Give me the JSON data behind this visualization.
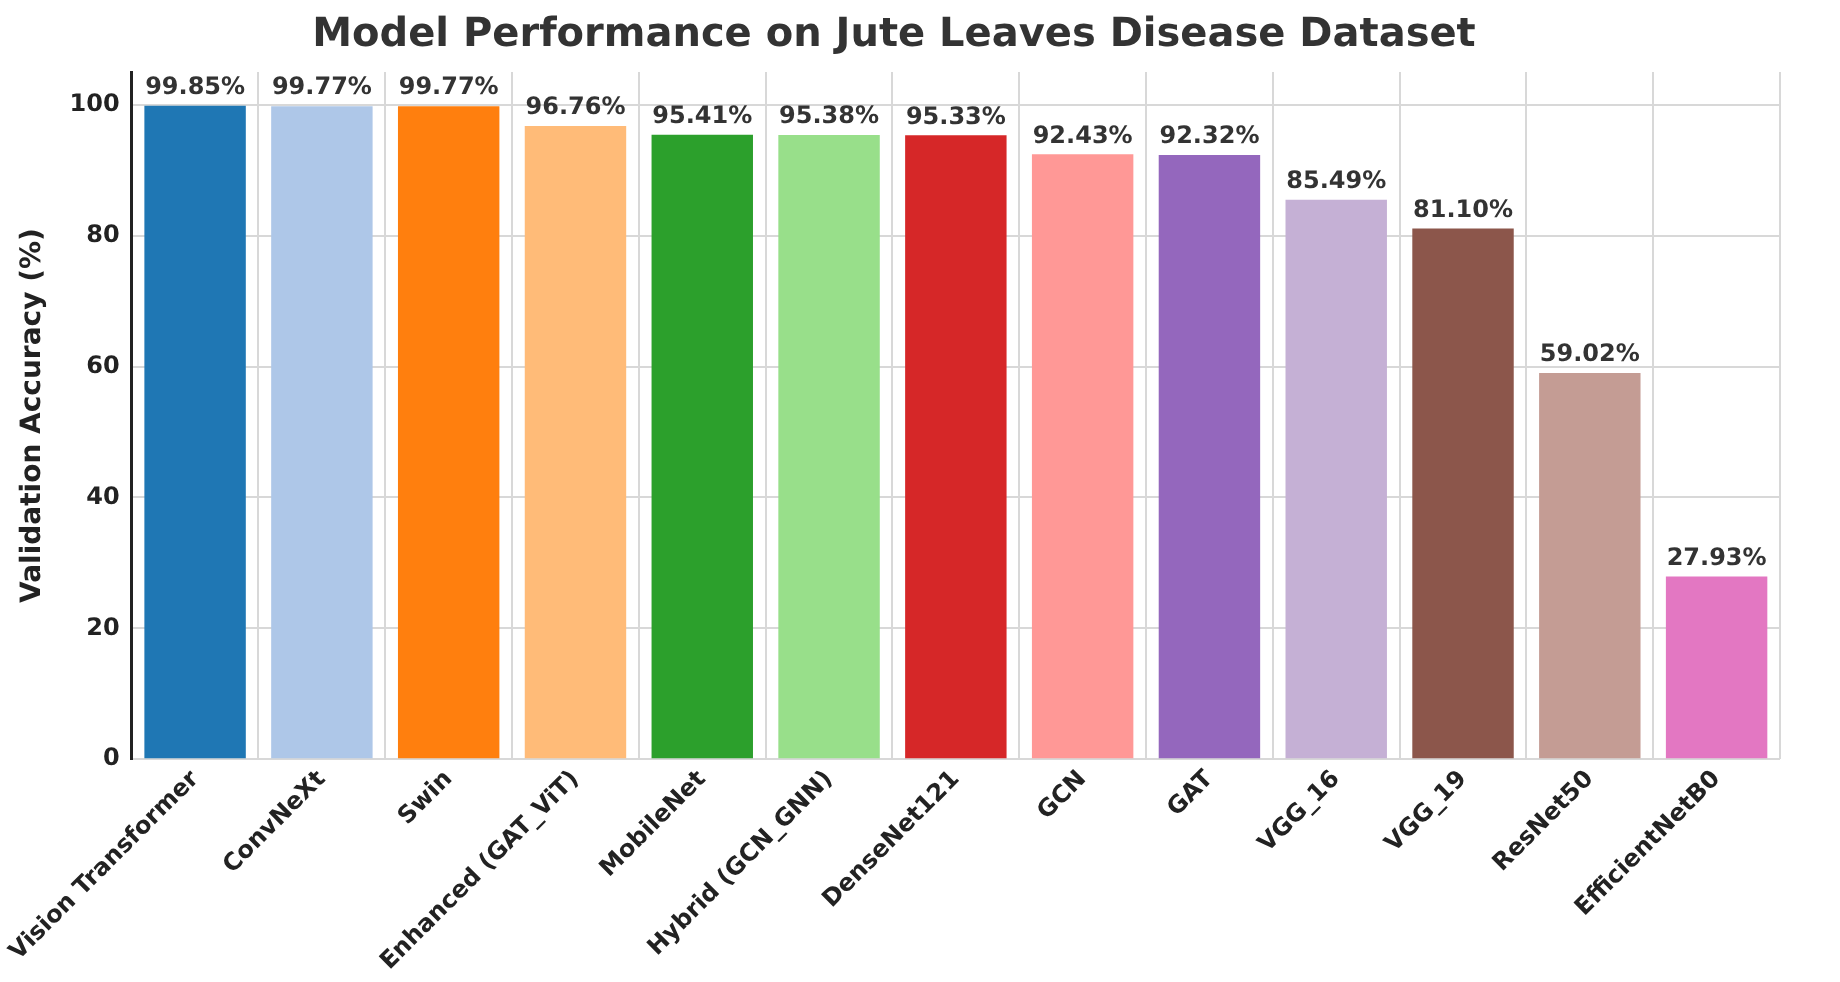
{
  "chart_data": {
    "type": "bar",
    "title": "Model Performance on Jute Leaves Disease Dataset",
    "ylabel": "Validation Accuracy (%)",
    "categories": [
      "Vision Transformer",
      "ConvNeXt",
      "Swin",
      "Enhanced (GAT_ViT)",
      "MobileNet",
      "Hybrid (GCN_GNN)",
      "DenseNet121",
      "GCN",
      "GAT",
      "VGG_16",
      "VGG_19",
      "ResNet50",
      "EfficientNetB0"
    ],
    "values": [
      99.85,
      99.77,
      99.77,
      96.76,
      95.41,
      95.38,
      95.33,
      92.43,
      92.32,
      85.49,
      81.1,
      59.02,
      27.93
    ],
    "colors": [
      "#1f77b4",
      "#aec7e8",
      "#ff7f0e",
      "#ffbb78",
      "#2ca02c",
      "#98df8a",
      "#d62728",
      "#ff9896",
      "#9467bd",
      "#c5b0d5",
      "#8c564b",
      "#c49c94",
      "#e377c2"
    ],
    "value_labels": [
      "99.85%",
      "99.77%",
      "99.77%",
      "96.76%",
      "95.41%",
      "95.38%",
      "95.33%",
      "92.43%",
      "92.32%",
      "85.49%",
      "81.10%",
      "59.02%",
      "27.93%"
    ],
    "ylim": [
      0,
      105
    ],
    "yticks": [
      0,
      20,
      40,
      60,
      80,
      100
    ],
    "grid": true
  }
}
